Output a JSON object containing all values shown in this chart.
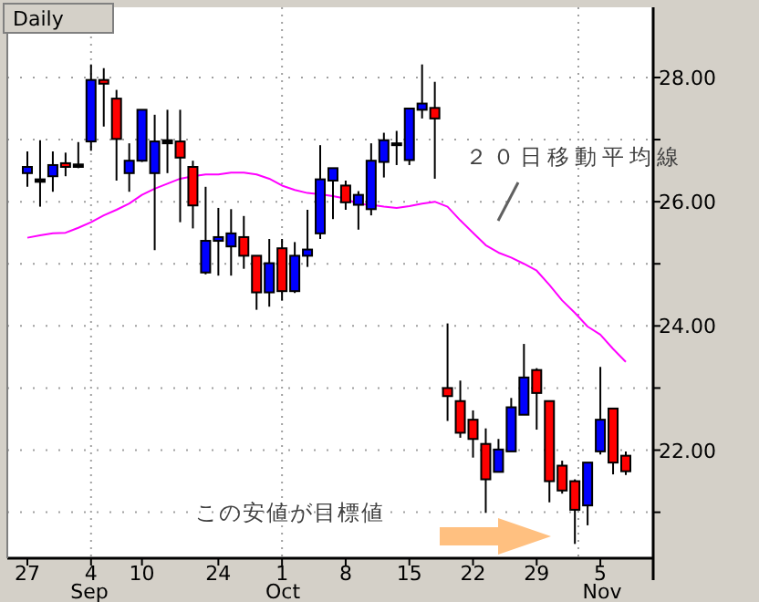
{
  "chart_data": {
    "type": "candlestick",
    "title": "Daily",
    "categories": [
      "27",
      null,
      null,
      null,
      null,
      "4",
      null,
      null,
      null,
      "10",
      null,
      null,
      null,
      null,
      null,
      "24",
      null,
      null,
      null,
      null,
      "1",
      null,
      null,
      null,
      null,
      "8",
      null,
      null,
      null,
      null,
      "15",
      null,
      null,
      null,
      null,
      "22",
      null,
      null,
      null,
      null,
      "29",
      null,
      null,
      null,
      null,
      "5",
      null,
      null
    ],
    "ohlc": [
      [
        26.46,
        26.81,
        26.24,
        26.56
      ],
      [
        26.32,
        26.99,
        25.92,
        26.36
      ],
      [
        26.41,
        26.81,
        26.16,
        26.59
      ],
      [
        26.62,
        26.79,
        26.41,
        26.56
      ],
      [
        26.56,
        26.96,
        26.54,
        26.6
      ],
      [
        26.97,
        28.21,
        26.82,
        27.96
      ],
      [
        27.96,
        28.15,
        27.21,
        27.9
      ],
      [
        27.66,
        27.8,
        26.34,
        27.01
      ],
      [
        26.46,
        26.94,
        26.16,
        26.66
      ],
      [
        26.66,
        27.48,
        26.64,
        27.48
      ],
      [
        26.46,
        27.4,
        25.22,
        26.97
      ],
      [
        26.94,
        27.48,
        26.46,
        26.99
      ],
      [
        26.97,
        27.48,
        25.67,
        26.71
      ],
      [
        26.56,
        26.66,
        25.57,
        25.94
      ],
      [
        24.86,
        26.24,
        24.83,
        25.37
      ],
      [
        25.37,
        25.9,
        24.81,
        25.43
      ],
      [
        25.28,
        25.88,
        24.81,
        25.49
      ],
      [
        25.43,
        25.77,
        24.92,
        25.13
      ],
      [
        25.13,
        25.13,
        24.26,
        24.54
      ],
      [
        24.54,
        25.4,
        24.31,
        25.01
      ],
      [
        25.25,
        25.4,
        24.41,
        24.56
      ],
      [
        24.56,
        25.35,
        24.53,
        25.13
      ],
      [
        25.13,
        25.87,
        24.95,
        25.23
      ],
      [
        25.49,
        26.91,
        25.4,
        26.36
      ],
      [
        26.34,
        26.54,
        25.72,
        26.54
      ],
      [
        26.26,
        26.34,
        25.87,
        25.99
      ],
      [
        25.95,
        26.17,
        25.55,
        26.11
      ],
      [
        25.88,
        26.94,
        25.78,
        26.66
      ],
      [
        26.64,
        27.11,
        26.39,
        26.99
      ],
      [
        26.91,
        27.14,
        26.59,
        26.94
      ],
      [
        26.67,
        27.5,
        26.59,
        27.5
      ],
      [
        27.48,
        28.21,
        27.34,
        27.58
      ],
      [
        27.51,
        27.93,
        26.37,
        27.34
      ],
      [
        23.0,
        24.04,
        22.47,
        22.87
      ],
      [
        22.79,
        23.12,
        22.2,
        22.28
      ],
      [
        22.49,
        22.64,
        21.88,
        22.18
      ],
      [
        22.1,
        22.35,
        20.99,
        21.53
      ],
      [
        21.65,
        22.18,
        21.65,
        22.01
      ],
      [
        21.98,
        22.84,
        21.98,
        22.69
      ],
      [
        22.57,
        23.71,
        22.57,
        23.17
      ],
      [
        23.29,
        23.32,
        22.33,
        22.92
      ],
      [
        22.79,
        22.79,
        21.16,
        21.5
      ],
      [
        21.75,
        21.83,
        21.3,
        21.35
      ],
      [
        21.5,
        21.53,
        20.49,
        21.04
      ],
      [
        21.11,
        21.8,
        20.79,
        21.8
      ],
      [
        21.98,
        23.34,
        21.93,
        22.49
      ],
      [
        22.67,
        22.67,
        21.61,
        21.8
      ],
      [
        21.91,
        21.98,
        21.6,
        21.66
      ]
    ],
    "colors": [
      "#0000ff",
      "#000000",
      "#0000ff",
      "#ff0000",
      "#000000",
      "#0000ff",
      "#ff0000",
      "#ff0000",
      "#0000ff",
      "#0000ff",
      "#0000ff",
      "#000000",
      "#ff0000",
      "#ff0000",
      "#0000ff",
      "#0000ff",
      "#0000ff",
      "#ff0000",
      "#ff0000",
      "#0000ff",
      "#ff0000",
      "#0000ff",
      "#0000ff",
      "#0000ff",
      "#0000ff",
      "#ff0000",
      "#0000ff",
      "#0000ff",
      "#0000ff",
      "#000000",
      "#0000ff",
      "#0000ff",
      "#ff0000",
      "#ff0000",
      "#ff0000",
      "#ff0000",
      "#ff0000",
      "#0000ff",
      "#0000ff",
      "#0000ff",
      "#ff0000",
      "#ff0000",
      "#ff0000",
      "#ff0000",
      "#0000ff",
      "#0000ff",
      "#ff0000",
      "#ff0000"
    ],
    "series": [
      {
        "type": "line",
        "color": "#ff00ff",
        "values": [
          25.42,
          25.46,
          25.49,
          25.5,
          25.58,
          25.67,
          25.78,
          25.87,
          25.97,
          26.11,
          26.21,
          26.29,
          26.37,
          26.41,
          26.44,
          26.44,
          26.47,
          26.47,
          26.44,
          26.37,
          26.26,
          26.19,
          26.14,
          26.12,
          26.09,
          26.05,
          25.96,
          25.95,
          25.92,
          25.9,
          25.93,
          25.97,
          26.0,
          25.92,
          25.7,
          25.5,
          25.3,
          25.18,
          25.1,
          25.0,
          24.89,
          24.66,
          24.41,
          24.21,
          23.99,
          23.86,
          23.63,
          23.42
        ]
      }
    ],
    "ylim": [
      20.26,
      29.13
    ],
    "yticks": [
      {
        "value": 21,
        "label": null
      },
      {
        "value": 22,
        "label": "22.00"
      },
      {
        "value": 23,
        "label": null
      },
      {
        "value": 24,
        "label": "24.00"
      },
      {
        "value": 25,
        "label": null
      },
      {
        "value": 26,
        "label": "26.00"
      },
      {
        "value": 27,
        "label": null
      },
      {
        "value": 28,
        "label": "28.00"
      }
    ],
    "grid": "y",
    "ref_lines": [
      {
        "axis": "x",
        "value": "4",
        "color": "#a0a0a0",
        "line_style": "dotted"
      },
      {
        "axis": "x",
        "value": "1",
        "color": "#a0a0a0",
        "line_style": "dotted"
      }
    ],
    "annotations": [
      "２０日移動平均線",
      "この安値が目標値",
      "Sep",
      "Oct",
      "Nov"
    ]
  }
}
